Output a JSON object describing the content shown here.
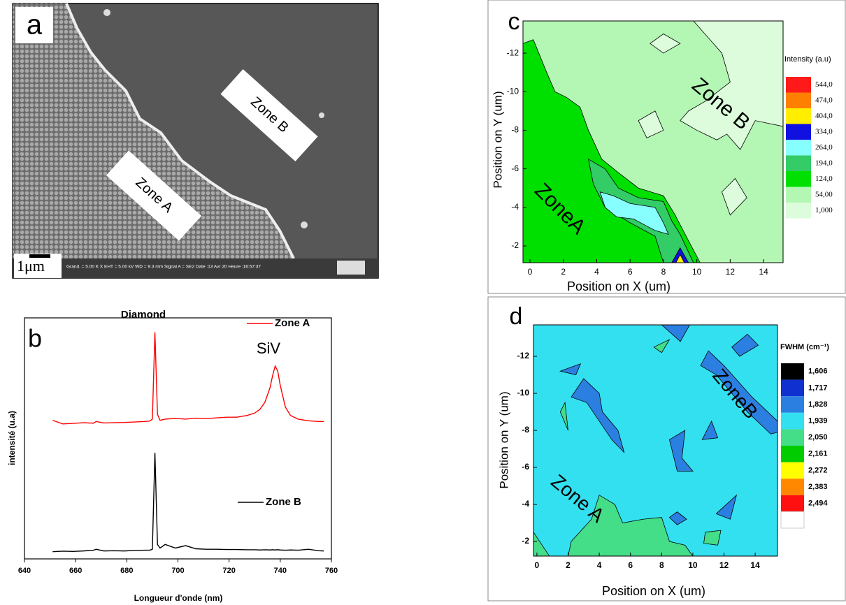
{
  "image_panel": {
    "label": "a",
    "annotations": [
      "Zone B",
      "Zone A"
    ],
    "scale_bar": "1μm",
    "info": "Grand. =  5.00 K X   EHT = 5.00 kV   WD =  9.3 mm   Signal A = SE2   Date :13 Avr 20   Heure :16:57:37"
  },
  "chart_data": [
    {
      "type": "line",
      "panel_label": "b",
      "title": "Diamond",
      "annotations": [
        "SiV"
      ],
      "x_label": "Longueur d'onde (nm)",
      "y_label": "intensité (u.a)",
      "xlim": [
        640,
        760
      ],
      "xticks": [
        640,
        660,
        680,
        700,
        720,
        740,
        760
      ],
      "ylim": [
        0,
        100
      ],
      "x": [
        651,
        655,
        659,
        663,
        667,
        668,
        671,
        675,
        679,
        683,
        687,
        689,
        690,
        691,
        692,
        693,
        695,
        699,
        703,
        707,
        711,
        715,
        719,
        723,
        727,
        730,
        732,
        734,
        736,
        737,
        738,
        739,
        740,
        742,
        744,
        747,
        751,
        755,
        757
      ],
      "series": [
        {
          "name": "Zone A",
          "color": "#ff0000",
          "values": [
            57.5,
            56,
            56.2,
            56.5,
            56.3,
            57,
            56.4,
            56.5,
            56.6,
            56.8,
            57,
            57.2,
            58,
            94,
            60,
            57.5,
            58,
            58.3,
            58,
            58.4,
            58.2,
            58.5,
            58.8,
            58.8,
            59.5,
            60.5,
            62,
            65,
            71,
            76,
            80,
            78,
            72,
            63,
            59.5,
            58,
            57.3,
            57,
            57
          ]
        },
        {
          "name": "Zone B",
          "color": "#000000",
          "values": [
            3,
            3.2,
            3.1,
            3.3,
            3.6,
            4,
            3.3,
            3.4,
            3.3,
            3.5,
            3.6,
            3.6,
            4,
            44,
            6,
            4.5,
            6,
            4.5,
            5.5,
            4.2,
            4,
            4,
            3.9,
            3.9,
            3.8,
            3.8,
            3.7,
            3.8,
            3.7,
            3.8,
            3.7,
            3.8,
            3.7,
            3.6,
            3.7,
            3.6,
            4,
            3.4,
            3.3
          ]
        }
      ]
    },
    {
      "type": "contour",
      "panel_label": "c",
      "x_label": "Position on X (um)",
      "y_label": "Position on Y (um)",
      "annotations": [
        "Zone B",
        "ZoneA"
      ],
      "colorbar_title": "Intensity (a.u)",
      "xlim": [
        -0.42,
        15.17
      ],
      "xticks": [
        0,
        2,
        4,
        6,
        8,
        10,
        12,
        14
      ],
      "ylim": [
        -1.13,
        -13.67
      ],
      "yticks": [
        -12,
        -10,
        -8,
        -6,
        -4,
        -2
      ],
      "levels": [
        {
          "value": 544,
          "label": "544,0"
        },
        {
          "value": 474,
          "label": "474,0"
        },
        {
          "value": 404,
          "label": "404,0"
        },
        {
          "value": 334,
          "label": "334,0"
        },
        {
          "value": 264,
          "label": "264,0"
        },
        {
          "value": 194,
          "label": "194,0"
        },
        {
          "value": 124,
          "label": "124,0"
        },
        {
          "value": 54,
          "label": "54,00"
        },
        {
          "value": 1,
          "label": "1,000"
        }
      ],
      "level_colors": [
        "#ff1a1a",
        "#ff8000",
        "#ffee00",
        "#1010e0",
        "#88ffff",
        "#33cc66",
        "#00e000",
        "#b4f7b4",
        "#dcfcdc"
      ],
      "background_level": 54,
      "regions": [
        {
          "level": 124,
          "x": [
            -0.42,
            -0.42,
            0.2,
            1.0,
            1.5,
            2.2,
            3.0,
            3.5,
            4.3,
            5.3,
            6.5,
            8.0,
            8.7,
            9.3,
            10.2
          ],
          "y": [
            -1.13,
            -12.5,
            -12.7,
            -11.0,
            -10.0,
            -9.7,
            -9.2,
            -8.0,
            -6.5,
            -5.8,
            -5.0,
            -4.6,
            -3.6,
            -2.6,
            -1.13
          ]
        },
        {
          "level": 194,
          "x": [
            3.5,
            4.5,
            5.3,
            6.5,
            8.0,
            8.5,
            9.0,
            9.8,
            8.0,
            7.5,
            6.0,
            4.5,
            3.8
          ],
          "y": [
            -6.5,
            -6.0,
            -5.0,
            -4.5,
            -4.3,
            -3.3,
            -2.6,
            -1.13,
            -1.13,
            -2.5,
            -3.2,
            -4.0,
            -5.2
          ]
        },
        {
          "level": 264,
          "x": [
            4.2,
            5.0,
            6.0,
            7.5,
            8.0,
            8.3,
            7.5,
            6.2,
            5.2,
            4.5
          ],
          "y": [
            -4.8,
            -4.6,
            -4.2,
            -4.0,
            -3.2,
            -2.6,
            -2.8,
            -3.4,
            -3.5,
            -4.0
          ]
        },
        {
          "level": 334,
          "x": [
            8.5,
            9.0,
            9.5
          ],
          "y": [
            -1.13,
            -1.9,
            -1.13
          ]
        },
        {
          "level": 404,
          "x": [
            8.75,
            9.0,
            9.25
          ],
          "y": [
            -1.13,
            -1.55,
            -1.13
          ]
        },
        {
          "level": 1,
          "x": [
            9.8,
            11.5,
            12.0,
            10.5,
            9.5,
            9.0,
            10.0,
            11.2,
            11.8,
            12.6,
            13.5,
            15.17,
            15.17
          ],
          "y": [
            -13.67,
            -12.0,
            -10.5,
            -9.5,
            -9.0,
            -8.5,
            -8.0,
            -7.5,
            -7.8,
            -7.0,
            -8.5,
            -8.2,
            -13.67
          ]
        },
        {
          "level": 1,
          "x": [
            7.2,
            8.0,
            9.0,
            8.0
          ],
          "y": [
            -12.5,
            -13.0,
            -12.5,
            -12.0
          ]
        },
        {
          "level": 1,
          "x": [
            6.5,
            7.5,
            8.0,
            7.0
          ],
          "y": [
            -8.5,
            -9.0,
            -8.0,
            -7.6
          ]
        },
        {
          "level": 1,
          "x": [
            11.5,
            12.3,
            13.0,
            12.0
          ],
          "y": [
            -4.8,
            -5.5,
            -4.5,
            -3.6
          ]
        }
      ]
    },
    {
      "type": "contour",
      "panel_label": "d",
      "x_label": "Position on X (um)",
      "y_label": "Position on Y  (um)",
      "annotations": [
        "ZoneB",
        "Zone A"
      ],
      "colorbar_title": "FWHM (cm⁻¹)",
      "xlim": [
        -0.22,
        15.43
      ],
      "xticks": [
        0,
        2,
        4,
        6,
        8,
        10,
        12,
        14
      ],
      "ylim": [
        -1.21,
        -13.7
      ],
      "yticks": [
        -12,
        -10,
        -8,
        -6,
        -4,
        -2
      ],
      "levels": [
        {
          "value": 1.606,
          "label": "1,606"
        },
        {
          "value": 1.717,
          "label": "1,717"
        },
        {
          "value": 1.828,
          "label": "1,828"
        },
        {
          "value": 1.939,
          "label": "1,939"
        },
        {
          "value": 2.05,
          "label": "2,050"
        },
        {
          "value": 2.161,
          "label": "2,161"
        },
        {
          "value": 2.272,
          "label": "2,272"
        },
        {
          "value": 2.383,
          "label": "2,383"
        },
        {
          "value": 2.494,
          "label": "2,494"
        }
      ],
      "level_colors": [
        "#000000",
        "#1030d0",
        "#2b7fe0",
        "#33e0f0",
        "#44dd88",
        "#00cc00",
        "#ffff00",
        "#ff8800",
        "#ff1010"
      ],
      "background_level": 1.939,
      "regions": [
        {
          "level": 1.828,
          "x": [
            10.5,
            11.5,
            13.5,
            15.0,
            15.43,
            15.43,
            13.8,
            12.0,
            11.0
          ],
          "y": [
            -11.5,
            -11.0,
            -9.0,
            -7.8,
            -7.9,
            -8.5,
            -9.8,
            -11.5,
            -12.3
          ]
        },
        {
          "level": 1.828,
          "x": [
            2.2,
            3.0,
            4.0,
            4.2,
            5.2,
            5.6,
            4.8,
            4.0,
            3.2
          ],
          "y": [
            -9.8,
            -10.8,
            -10.0,
            -9.0,
            -8.0,
            -6.8,
            -7.5,
            -8.5,
            -9.5
          ]
        },
        {
          "level": 1.828,
          "x": [
            8.0,
            9.2,
            9.8
          ],
          "y": [
            -13.7,
            -12.8,
            -13.7
          ]
        },
        {
          "level": 1.828,
          "x": [
            1.5,
            2.8,
            2.5
          ],
          "y": [
            -11.2,
            -11.6,
            -11.0
          ]
        },
        {
          "level": 1.828,
          "x": [
            12.5,
            13.5,
            14.2,
            13.0
          ],
          "y": [
            -12.5,
            -13.2,
            -12.6,
            -12.0
          ]
        },
        {
          "level": 1.828,
          "x": [
            8.5,
            9.5,
            9.3,
            10.0,
            9.0
          ],
          "y": [
            -7.5,
            -8.0,
            -6.5,
            -5.8,
            -5.8
          ]
        },
        {
          "level": 1.828,
          "x": [
            10.6,
            11.2,
            11.6
          ],
          "y": [
            -7.5,
            -8.5,
            -7.6
          ]
        },
        {
          "level": 1.828,
          "x": [
            11.5,
            12.8,
            12.4
          ],
          "y": [
            -3.5,
            -4.5,
            -3.2
          ]
        },
        {
          "level": 1.828,
          "x": [
            8.5,
            9.0,
            9.6,
            9.0
          ],
          "y": [
            -3.3,
            -3.6,
            -3.2,
            -2.9
          ]
        },
        {
          "level": 2.05,
          "x": [
            2.0,
            2.2,
            3.5,
            4.0,
            5.0,
            5.5,
            6.8,
            8.0,
            8.5,
            9.5,
            10.0
          ],
          "y": [
            -1.21,
            -2.0,
            -3.2,
            -4.5,
            -4.0,
            -3.0,
            -3.2,
            -3.3,
            -2.0,
            -1.8,
            -1.21
          ]
        },
        {
          "level": 2.05,
          "x": [
            -0.22,
            0.8,
            -0.22
          ],
          "y": [
            -2.5,
            -1.21,
            -1.21
          ]
        },
        {
          "level": 2.05,
          "x": [
            7.5,
            8.5,
            8.0
          ],
          "y": [
            -12.5,
            -12.9,
            -12.2
          ]
        },
        {
          "level": 2.05,
          "x": [
            1.5,
            2.0,
            1.8
          ],
          "y": [
            -9.0,
            -8.0,
            -9.5
          ]
        },
        {
          "level": 2.05,
          "x": [
            10.8,
            11.8,
            11.6,
            10.7
          ],
          "y": [
            -2.5,
            -2.6,
            -1.8,
            -1.9
          ]
        }
      ]
    }
  ]
}
